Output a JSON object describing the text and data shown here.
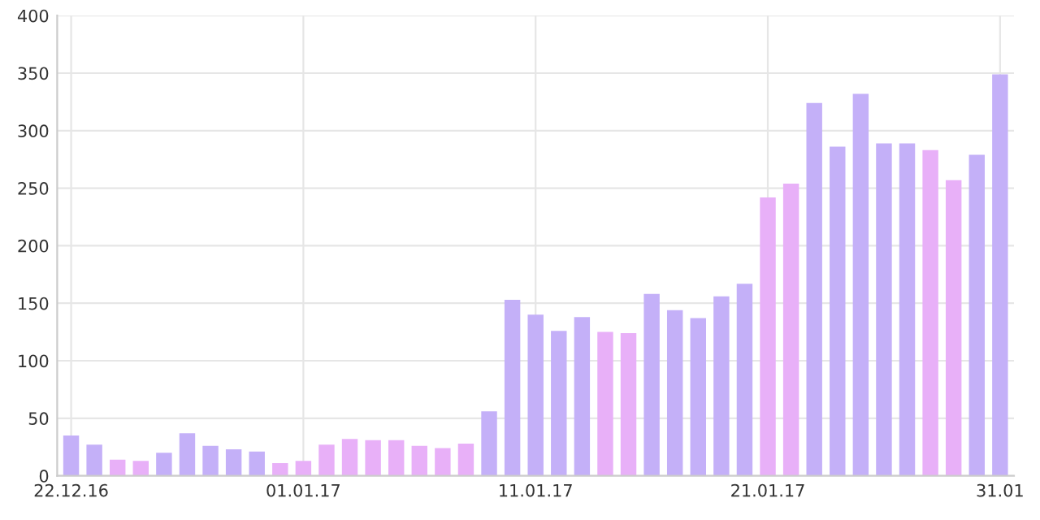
{
  "chart_data": {
    "type": "bar",
    "categories": [
      "22.12.16",
      null,
      null,
      null,
      null,
      null,
      null,
      null,
      null,
      null,
      "01.01.17",
      null,
      null,
      null,
      null,
      null,
      null,
      null,
      null,
      null,
      "11.01.17",
      null,
      null,
      null,
      null,
      null,
      null,
      null,
      null,
      null,
      "21.01.17",
      null,
      null,
      null,
      null,
      null,
      null,
      null,
      null,
      null,
      "31.01"
    ],
    "values": [
      35,
      27,
      14,
      13,
      20,
      37,
      26,
      23,
      21,
      11,
      13,
      27,
      32,
      31,
      31,
      26,
      24,
      28,
      56,
      153,
      140,
      126,
      138,
      125,
      124,
      158,
      144,
      137,
      156,
      167,
      242,
      254,
      324,
      286,
      332,
      289,
      289,
      283,
      257,
      279,
      349
    ],
    "colors": [
      "#c4b0f8",
      "#c4b0f8",
      "#e8b0f8",
      "#e8b0f8",
      "#c4b0f8",
      "#c4b0f8",
      "#c4b0f8",
      "#c4b0f8",
      "#c4b0f8",
      "#e8b0f8",
      "#e8b0f8",
      "#e8b0f8",
      "#e8b0f8",
      "#e8b0f8",
      "#e8b0f8",
      "#e8b0f8",
      "#e8b0f8",
      "#e8b0f8",
      "#c4b0f8",
      "#c4b0f8",
      "#c4b0f8",
      "#c4b0f8",
      "#c4b0f8",
      "#e8b0f8",
      "#e8b0f8",
      "#c4b0f8",
      "#c4b0f8",
      "#c4b0f8",
      "#c4b0f8",
      "#c4b0f8",
      "#e8b0f8",
      "#e8b0f8",
      "#c4b0f8",
      "#c4b0f8",
      "#c4b0f8",
      "#c4b0f8",
      "#c4b0f8",
      "#e8b0f8",
      "#e8b0f8",
      "#c4b0f8",
      "#c4b0f8"
    ],
    "ylim": [
      0,
      400
    ],
    "yticks": [
      0,
      50,
      100,
      150,
      200,
      250,
      300,
      350,
      400
    ],
    "grid": true
  }
}
